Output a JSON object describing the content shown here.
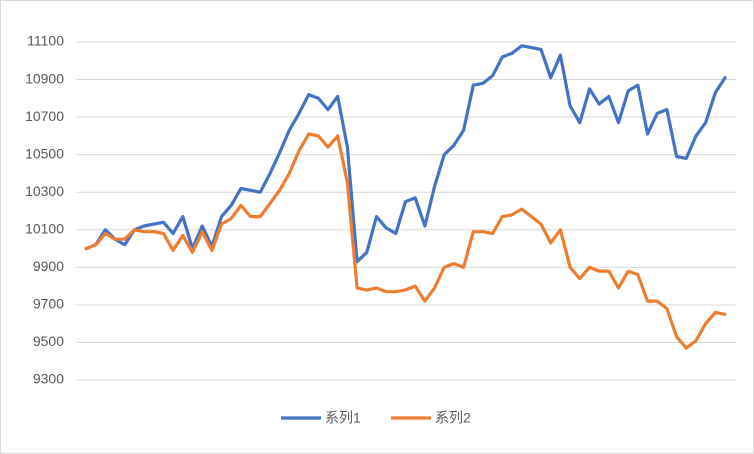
{
  "chart_data": {
    "type": "line",
    "ylim": [
      9300,
      11100
    ],
    "yticks": [
      9300,
      9500,
      9700,
      9900,
      10100,
      10300,
      10500,
      10700,
      10900,
      11100
    ],
    "grid": true,
    "legend": "bottom",
    "series": [
      {
        "name": "系列1",
        "color": "#4472c4",
        "values": [
          10000,
          10020,
          10100,
          10050,
          10020,
          10100,
          10120,
          10130,
          10140,
          10080,
          10170,
          10000,
          10120,
          10010,
          10170,
          10230,
          10320,
          10310,
          10300,
          10400,
          10510,
          10630,
          10720,
          10820,
          10800,
          10740,
          10810,
          10540,
          9930,
          9980,
          10170,
          10110,
          10080,
          10250,
          10270,
          10120,
          10330,
          10500,
          10550,
          10630,
          10870,
          10880,
          10920,
          11020,
          11040,
          11080,
          11070,
          11060,
          10910,
          11030,
          10760,
          10670,
          10850,
          10770,
          10810,
          10670,
          10840,
          10870,
          10610,
          10720,
          10740,
          10490,
          10480,
          10600,
          10670,
          10830,
          10910
        ]
      },
      {
        "name": "系列2",
        "color": "#ed7d31",
        "values": [
          10000,
          10020,
          10080,
          10050,
          10050,
          10100,
          10090,
          10090,
          10080,
          9990,
          10070,
          9980,
          10090,
          9990,
          10130,
          10160,
          10230,
          10170,
          10170,
          10240,
          10310,
          10400,
          10520,
          10610,
          10600,
          10540,
          10600,
          10350,
          9790,
          9780,
          9790,
          9770,
          9770,
          9780,
          9800,
          9720,
          9790,
          9900,
          9920,
          9900,
          10090,
          10090,
          10080,
          10170,
          10180,
          10210,
          10170,
          10130,
          10030,
          10100,
          9900,
          9840,
          9900,
          9880,
          9880,
          9790,
          9880,
          9860,
          9720,
          9720,
          9680,
          9530,
          9470,
          9510,
          9600,
          9660,
          9650
        ]
      }
    ]
  }
}
